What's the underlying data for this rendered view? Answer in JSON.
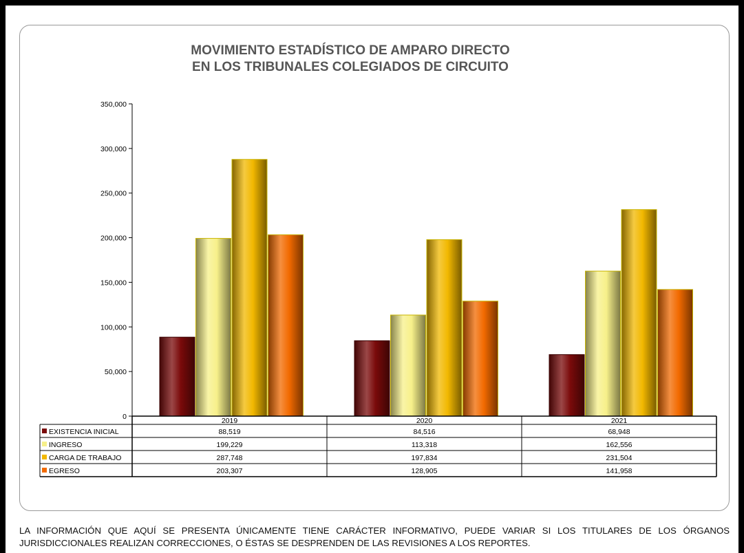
{
  "chart_data": {
    "type": "bar",
    "title_lines": [
      "MOVIMIENTO ESTADÍSTICO DE AMPARO DIRECTO",
      "EN LOS TRIBUNALES COLEGIADOS DE CIRCUITO"
    ],
    "categories": [
      "2019",
      "2020",
      "2021"
    ],
    "ylim": [
      0,
      350000
    ],
    "yticks": [
      0,
      50000,
      100000,
      150000,
      200000,
      250000,
      300000,
      350000
    ],
    "ytick_labels": [
      "0",
      "50,000",
      "100,000",
      "150,000",
      "200,000",
      "250,000",
      "300,000",
      "350,000"
    ],
    "grid": false,
    "legend": "data-table",
    "series": [
      {
        "name": "EXISTENCIA INICIAL",
        "color": "#7a0a0a",
        "values": [
          88519,
          84516,
          68948
        ],
        "labels": [
          "88,519",
          "84,516",
          "68,948"
        ]
      },
      {
        "name": "INGRESO",
        "color": "#f7f08a",
        "values": [
          199229,
          113318,
          162556
        ],
        "labels": [
          "199,229",
          "113,318",
          "162,556"
        ]
      },
      {
        "name": "CARGA DE TRABAJO",
        "color": "#f2b800",
        "values": [
          287748,
          197834,
          231504
        ],
        "labels": [
          "287,748",
          "197,834",
          "231,504"
        ]
      },
      {
        "name": "EGRESO",
        "color": "#f26a00",
        "values": [
          203307,
          128905,
          141958
        ],
        "labels": [
          "203,307",
          "128,905",
          "141,958"
        ]
      }
    ]
  },
  "footnote": "LA INFORMACIÓN QUE AQUÍ SE PRESENTA ÚNICAMENTE TIENE CARÁCTER INFORMATIVO, PUEDE VARIAR SI LOS TITULARES DE LOS ÓRGANOS JURISDICCIONALES REALIZAN CORRECCIONES, O ÉSTAS SE DESPRENDEN DE LAS REVISIONES A LOS REPORTES."
}
